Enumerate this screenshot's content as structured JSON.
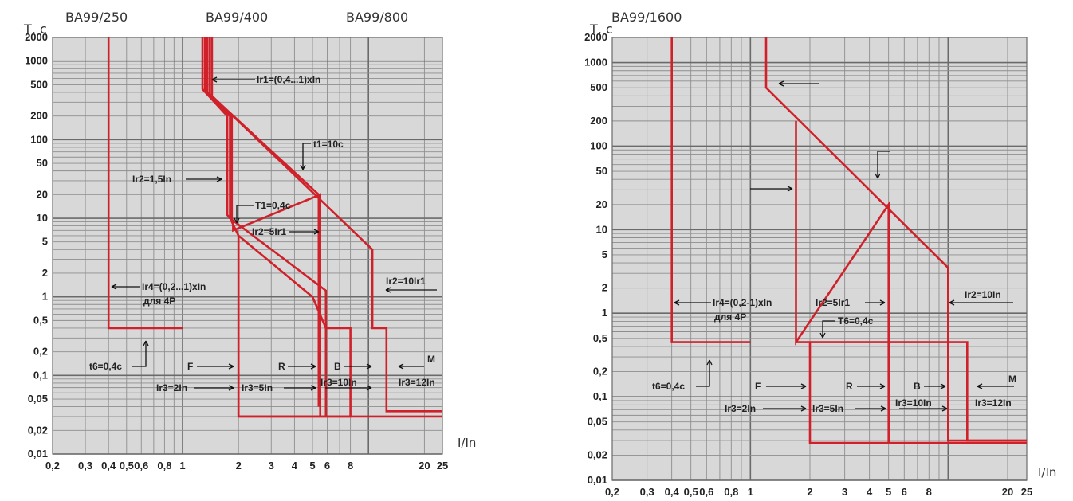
{
  "chart_data": [
    {
      "type": "line",
      "titles": [
        "ВА99/250",
        "ВА99/400",
        "ВА99/800"
      ],
      "ylabel": "T, c",
      "xlabel": "I/In",
      "xscale": "log",
      "yscale": "log",
      "xlim": [
        0.2,
        25
      ],
      "ylim": [
        0.01,
        2000
      ],
      "grid": true,
      "color": "#d0202a",
      "plot_bg": "#d8d8d8",
      "xticks": [
        "0,2",
        "0,3",
        "0,4",
        "0,5",
        "0,6",
        "0,8",
        "1",
        "2",
        "3",
        "4",
        "5",
        "6",
        "8",
        "20",
        "25"
      ],
      "yticks": [
        "0,01",
        "0,02",
        "0,05",
        "0,1",
        "0,2",
        "0,5",
        "1",
        "2",
        "5",
        "10",
        "20",
        "50",
        "100",
        "200",
        "500",
        "1000",
        "2000"
      ],
      "series": [
        {
          "x": [
            0.4,
            0.4,
            1.0
          ],
          "y": [
            2000,
            0.4,
            0.4
          ]
        },
        {
          "x": [
            1.28,
            1.28,
            1.74,
            1.74,
            1.87,
            1.87,
            5.5,
            5.5
          ],
          "y": [
            2000,
            440,
            200,
            11,
            9,
            7,
            20,
            0.03
          ]
        },
        {
          "x": [
            1.32,
            1.32,
            1.8,
            1.8,
            5.9,
            5.9
          ],
          "y": [
            2000,
            420,
            200,
            10,
            1.2,
            0.03
          ]
        },
        {
          "x": [
            1.36,
            1.36,
            1.84,
            1.84,
            2.0,
            2.0,
            25
          ],
          "y": [
            2000,
            400,
            200,
            9,
            6,
            0.03,
            0.03
          ]
        },
        {
          "x": [
            1.4,
            1.4,
            5.4,
            5.4
          ],
          "y": [
            2000,
            380,
            20,
            0.04
          ]
        },
        {
          "x": [
            1.44,
            1.44,
            10.5,
            10.5,
            12.5,
            12.5,
            25
          ],
          "y": [
            2000,
            360,
            4,
            0.4,
            0.4,
            0.035,
            0.035
          ]
        },
        {
          "x": [
            2.0,
            5.0,
            5.9,
            8.0,
            8.0,
            2.0,
            2.0
          ],
          "y": [
            6,
            1.0,
            0.4,
            0.4,
            0.03,
            0.03,
            6
          ]
        }
      ],
      "annotations": [
        "Ir1=(0,4...1)xIn",
        "t1=10c",
        "Ir2=1,5In",
        "T1=0,4c",
        "Ir2=5Ir1",
        "Ir2=10Ir1",
        "Ir4=(0,2...1)xIn",
        "для 4P",
        "t6=0,4c",
        "F",
        "R",
        "B",
        "M",
        "Ir3=2In",
        "Ir3=5In",
        "Ir3=10In",
        "Ir3=12In"
      ]
    },
    {
      "type": "line",
      "titles": [
        "ВА99/1600"
      ],
      "ylabel": "T, c",
      "xlabel": "I/In",
      "xscale": "log",
      "yscale": "log",
      "xlim": [
        0.2,
        25
      ],
      "ylim": [
        0.01,
        2000
      ],
      "grid": true,
      "color": "#d0202a",
      "plot_bg": "#d8d8d8",
      "xticks": [
        "0,2",
        "0,3",
        "0,4",
        "0,5",
        "0,6",
        "0,8",
        "1",
        "2",
        "3",
        "4",
        "5",
        "6",
        "8",
        "20",
        "25"
      ],
      "yticks": [
        "0,01",
        "0,02",
        "0,05",
        "0,1",
        "0,2",
        "0,5",
        "1",
        "2",
        "5",
        "10",
        "20",
        "50",
        "100",
        "200",
        "500",
        "1000",
        "2000"
      ],
      "series": [
        {
          "x": [
            0.4,
            0.4,
            1.0
          ],
          "y": [
            2000,
            0.45,
            0.45
          ]
        },
        {
          "x": [
            1.2,
            1.2,
            10.0,
            10.0,
            25
          ],
          "y": [
            2000,
            500,
            3.5,
            0.03,
            0.03
          ]
        },
        {
          "x": [
            1.7,
            1.7,
            5.0,
            5.0
          ],
          "y": [
            200,
            0.45,
            20,
            0.028
          ]
        },
        {
          "x": [
            1.7,
            12.5,
            12.5,
            25
          ],
          "y": [
            0.45,
            0.45,
            0.03,
            0.03
          ]
        },
        {
          "x": [
            2.0,
            2.0,
            25
          ],
          "y": [
            0.45,
            0.028,
            0.028
          ]
        }
      ],
      "annotations": [
        "Ir4=(0,2-1)xIn",
        "для 4P",
        "t6=0,4c",
        "Ir2=5Ir1",
        "T6=0,4c",
        "Ir2=10In",
        "F",
        "R",
        "B",
        "M",
        "Ir3=2In",
        "Ir3=5In",
        "Ir3=10In",
        "Ir3=12In"
      ]
    }
  ]
}
